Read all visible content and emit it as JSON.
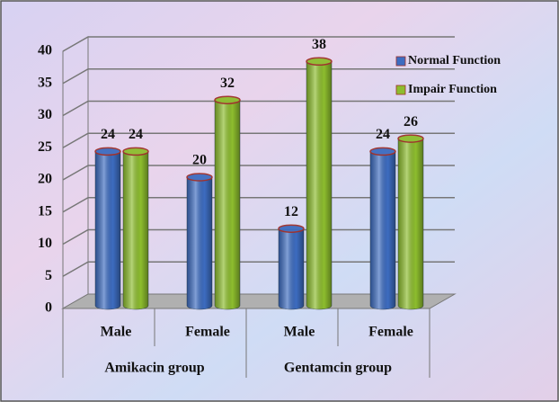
{
  "chart_data": {
    "type": "bar",
    "categories": [
      "Male",
      "Female",
      "Male",
      "Female"
    ],
    "category_groups": [
      "Amikacin group",
      "Gentamcin group"
    ],
    "series": [
      {
        "name": "Normal Function",
        "color": "#3d6cc0",
        "values": [
          24,
          20,
          12,
          24
        ]
      },
      {
        "name": "Impair Function",
        "color": "#8dbd2e",
        "values": [
          24,
          32,
          38,
          26
        ]
      }
    ],
    "ylim": [
      0,
      40
    ],
    "yticks": [
      0,
      5,
      10,
      15,
      20,
      25,
      30,
      35,
      40
    ],
    "grid": true,
    "legend": "upper right"
  }
}
